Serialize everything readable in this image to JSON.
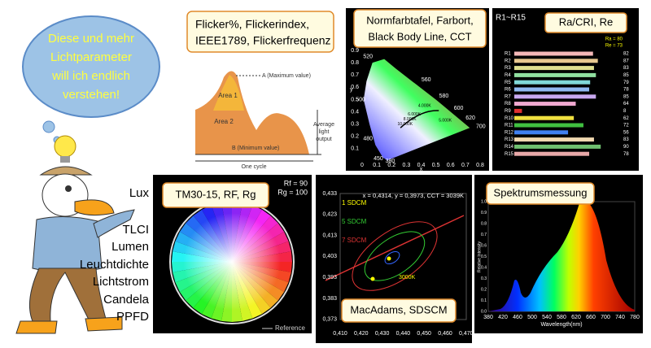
{
  "bubble": {
    "lines": [
      "Diese und mehr",
      "Lichtparameter",
      "will ich endlich",
      "verstehen!"
    ]
  },
  "parameters": [
    "Lux",
    "TLCI",
    "Lumen",
    "Leuchtdichte",
    "Lichtstrom",
    "Candela",
    "PPFD"
  ],
  "flicker": {
    "label_lines": [
      "Flicker%, Flickerindex,",
      "IEEE1789, Flickerfrequenz"
    ],
    "max_label": "A (Maximum value)",
    "area1": "Area 1",
    "area2": "Area 2",
    "min_label": "B (Minimum value)",
    "average_lines": [
      "Average",
      "light",
      "output"
    ],
    "cycle": "One cycle"
  },
  "cie": {
    "label_lines": [
      "Normfarbtafel, Farbort,",
      "Black Body Line, CCT"
    ],
    "xticks": [
      "0",
      "0.1",
      "0.2",
      "0.3",
      "0.4",
      "0.5",
      "0.6",
      "0.7",
      "0.8"
    ],
    "yticks": [
      "0.1",
      "0.2",
      "0.3",
      "0.4",
      "0.5",
      "0.6",
      "0.7",
      "0.8",
      "0.9"
    ],
    "x_label": "x",
    "y_label": "y",
    "wavelengths": [
      "560",
      "580",
      "600",
      "620",
      "700",
      "520",
      "500",
      "480",
      "450",
      "380"
    ],
    "cct_labels": [
      "4.000K",
      "6.000K",
      "8.000K",
      "10.000K",
      "5.000K"
    ]
  },
  "ra": {
    "header": "R1~R15",
    "label": "Ra/CRI, Re",
    "ra_value": "Ra = 80",
    "re_value": "Re = 73",
    "rows": [
      {
        "name": "R1",
        "value": 82
      },
      {
        "name": "R2",
        "value": 87
      },
      {
        "name": "R3",
        "value": 83
      },
      {
        "name": "R4",
        "value": 85
      },
      {
        "name": "R5",
        "value": 79
      },
      {
        "name": "R6",
        "value": 78
      },
      {
        "name": "R7",
        "value": 85
      },
      {
        "name": "R8",
        "value": 64
      },
      {
        "name": "R9",
        "value": 8
      },
      {
        "name": "R10",
        "value": 62
      },
      {
        "name": "R11",
        "value": 72
      },
      {
        "name": "R12",
        "value": 56
      },
      {
        "name": "R13",
        "value": 83
      },
      {
        "name": "R14",
        "value": 90
      },
      {
        "name": "R15",
        "value": 78
      }
    ]
  },
  "tm30": {
    "label": "TM30-15, RF, Rg",
    "rf": "Rf = 90",
    "rg": "Rg = 100",
    "reference": "Reference"
  },
  "macadam": {
    "label": "MacAdams, SDSCM",
    "readout": "x = 0,4314, y = 0,3973, CCT = 3039K",
    "steps": [
      "1 SDCM",
      "5 SDCM",
      "7 SDCM"
    ],
    "cct": "3000K",
    "yticks": [
      "0,433",
      "0,423",
      "0,413",
      "0,403",
      "0,393",
      "0,383",
      "0,373"
    ],
    "xticks": [
      "0,410",
      "0,420",
      "0,430",
      "0,440",
      "0,450",
      "0,460",
      "0,470"
    ]
  },
  "spectrum": {
    "label": "Spektrumsmessung",
    "x_label": "Wavelength(nm)",
    "y_label": "Relative Intensity",
    "xticks": [
      380,
      420,
      460,
      500,
      540,
      580,
      620,
      660,
      700,
      740,
      780
    ],
    "yticks": [
      "0.0",
      "0.1",
      "0.2",
      "0.3",
      "0.4",
      "0.5",
      "0.6",
      "0.7",
      "0.8",
      "0.9",
      "1.0"
    ]
  }
}
